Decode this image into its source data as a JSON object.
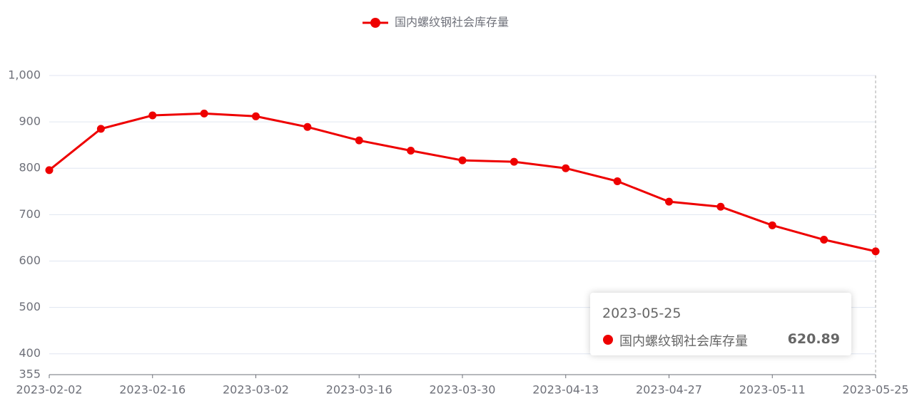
{
  "chart_data": {
    "type": "line",
    "categories": [
      "2023-02-02",
      null,
      "2023-02-16",
      null,
      "2023-03-02",
      null,
      "2023-03-16",
      null,
      "2023-03-30",
      null,
      "2023-04-13",
      null,
      "2023-04-27",
      null,
      "2023-05-11",
      null,
      "2023-05-25"
    ],
    "series": [
      {
        "name": "国内螺纹钢社会库存量",
        "color": "#ee0000",
        "values": [
          796,
          885,
          914,
          918,
          912,
          889,
          860,
          838,
          817,
          814,
          800,
          772,
          728,
          717,
          677,
          646,
          620.89
        ]
      }
    ],
    "ylim": [
      355,
      1000
    ],
    "yticks": [
      355,
      400,
      500,
      600,
      700,
      800,
      900,
      {
        "value": 1000,
        "label": "1,000"
      }
    ],
    "grid": true,
    "legend": "top"
  }
}
